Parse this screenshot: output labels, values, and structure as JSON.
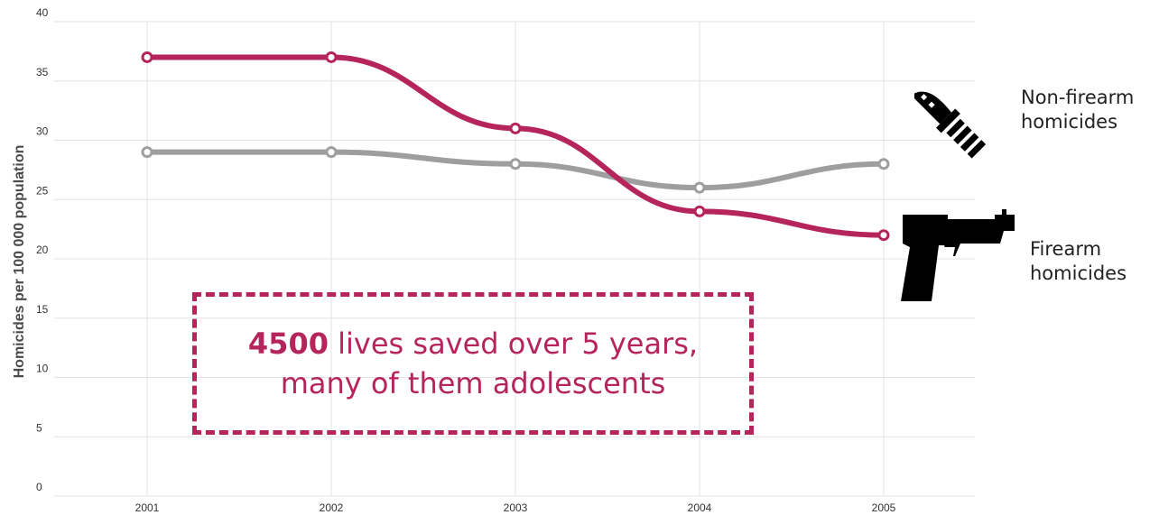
{
  "chart_data": {
    "type": "line",
    "x": [
      "2001",
      "2002",
      "2003",
      "2004",
      "2005"
    ],
    "series": [
      {
        "name": "Non-firearm homicides",
        "values": [
          29,
          29,
          28,
          26,
          28
        ],
        "color": "#9e9e9e"
      },
      {
        "name": "Firearm homicides",
        "values": [
          37,
          37,
          31,
          24,
          22
        ],
        "color": "#b5245a"
      }
    ],
    "xlabel": "",
    "ylabel": "Homicides per 100 000 population",
    "ylim": [
      0,
      40
    ],
    "yticks": [
      "0",
      "5",
      "10",
      "15",
      "20",
      "25",
      "30",
      "35",
      "40"
    ],
    "grid": true
  },
  "labels": {
    "nonfirearm_line1": "Non-firearm",
    "nonfirearm_line2": "homicides",
    "firearm_line1": "Firearm",
    "firearm_line2": "homicides"
  },
  "icons": {
    "nonfirearm": "knife-icon",
    "firearm": "pistol-icon"
  },
  "callout": {
    "bold": "4500",
    "rest_line1": " lives saved over 5 years,",
    "line2": "many of them adolescents",
    "color": "#b5245a"
  }
}
